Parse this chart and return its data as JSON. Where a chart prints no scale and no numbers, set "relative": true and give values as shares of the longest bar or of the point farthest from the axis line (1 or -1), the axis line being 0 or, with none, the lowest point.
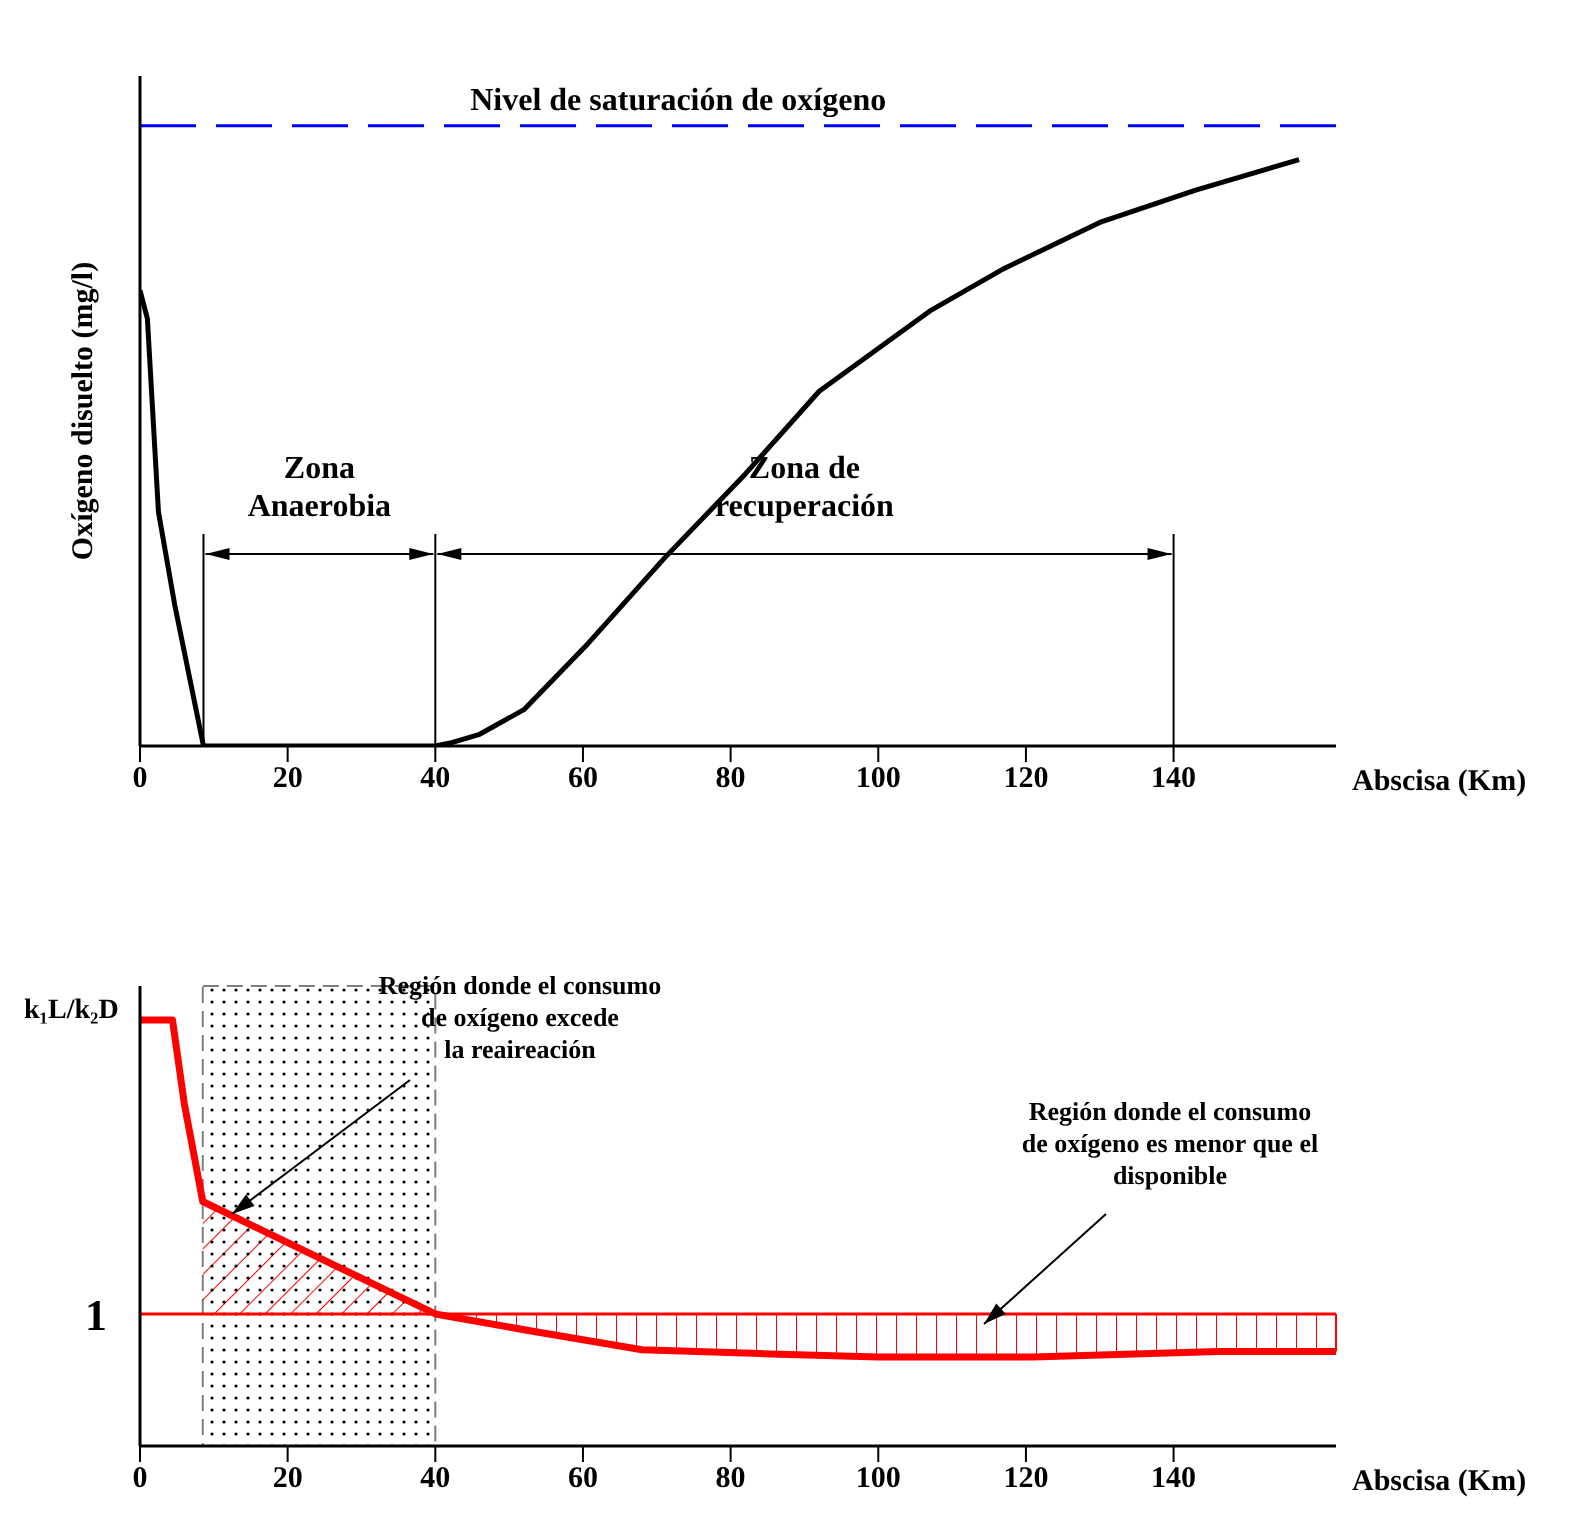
{
  "chart_data": [
    {
      "type": "line",
      "relative": true,
      "ylabel": "Oxígeno disuelto (mg/l)",
      "xlabel": "Abscisa (Km)",
      "xlim": [
        0,
        162
      ],
      "xticks": [
        0,
        20,
        40,
        60,
        80,
        100,
        120,
        140
      ],
      "x": [
        0,
        1,
        2.5,
        4.7,
        8.6,
        40,
        42,
        46,
        52,
        60.7,
        71,
        82,
        92,
        107,
        117,
        130,
        143,
        157
      ],
      "series": [
        {
          "color": "#000000",
          "values": [
            0.777,
            0.729,
            0.399,
            0.241,
            0,
            0,
            0.005,
            0.02,
            0.062,
            0.175,
            0.32,
            0.464,
            0.605,
            0.742,
            0.814,
            0.893,
            0.948,
            1
          ]
        }
      ],
      "ref_lines": [
        {
          "axis": "y",
          "value": 1.058,
          "label": "Nivel de saturación de oxígeno",
          "color": "#0000ff",
          "line_style": "dashed"
        },
        {
          "axis": "x",
          "value": 8.6,
          "color": "#000000"
        },
        {
          "axis": "x",
          "value": 40,
          "color": "#000000"
        },
        {
          "axis": "x",
          "value": 140,
          "color": "#000000"
        }
      ],
      "annotations": [
        "Zona\nAnaerobia",
        "Zona de\nrecuperación"
      ],
      "legend": false,
      "grid": false
    },
    {
      "type": "line",
      "relative": true,
      "ylabel": "k₁L/k₂D",
      "xlabel": "Abscisa (Km)",
      "xlim": [
        0,
        162
      ],
      "xticks": [
        0,
        20,
        40,
        60,
        80,
        100,
        120,
        140
      ],
      "x": [
        0,
        4.4,
        6,
        8.5,
        40,
        53,
        68,
        84,
        100,
        121,
        146,
        162
      ],
      "series": [
        {
          "color": "#ff0000",
          "values": [
            1,
            1,
            0.804,
            0.574,
            0.31,
            0.27,
            0.226,
            0.217,
            0.209,
            0.209,
            0.222,
            0.222
          ]
        }
      ],
      "ref_lines": [
        {
          "axis": "y",
          "value": 0.31,
          "color": "#ff0000"
        }
      ],
      "bands": [
        {
          "axis": "x",
          "from": 8.5,
          "to": 40,
          "color": "#000000"
        }
      ],
      "annotations": [
        "Región donde el consumo\nde oxígeno excede\nla reaireación",
        "Región donde el consumo\nde oxígeno es menor que el\ndisponible",
        "1"
      ],
      "legend": false,
      "grid": false
    }
  ]
}
